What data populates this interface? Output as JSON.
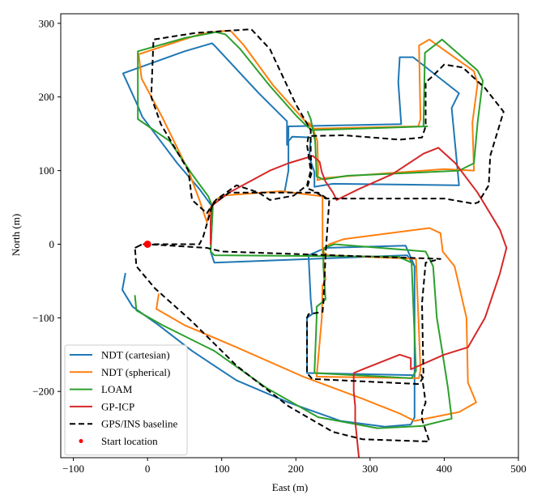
{
  "chart_data": {
    "type": "line",
    "title": "",
    "xlabel": "East (m)",
    "ylabel": "North (m)",
    "xlim": [
      -117,
      500
    ],
    "ylim": [
      -290,
      313
    ],
    "xticks": [
      -100,
      0,
      100,
      200,
      300,
      400,
      500
    ],
    "yticks": [
      -200,
      -100,
      0,
      100,
      200,
      300
    ],
    "grid": false,
    "legend": {
      "position": "lower-left"
    },
    "series": [
      {
        "name": "NDT (cartesian)",
        "color": "#1f77b4",
        "style": "solid",
        "points": [
          [
            -30,
            -40
          ],
          [
            -34,
            -62
          ],
          [
            -20,
            -85
          ],
          [
            15,
            -110
          ],
          [
            60,
            -145
          ],
          [
            120,
            -185
          ],
          [
            190,
            -215
          ],
          [
            260,
            -240
          ],
          [
            320,
            -248
          ],
          [
            355,
            -245
          ],
          [
            360,
            -235
          ],
          [
            360,
            -30
          ],
          [
            348,
            -2
          ],
          [
            240,
            -5
          ],
          [
            217,
            -15
          ],
          [
            220,
            -75
          ],
          [
            222,
            -95
          ],
          [
            215,
            -100
          ],
          [
            215,
            -175
          ],
          [
            360,
            -178
          ],
          [
            360,
            -30
          ],
          [
            350,
            -15
          ],
          [
            90,
            -25
          ],
          [
            85,
            -10
          ],
          [
            88,
            50
          ],
          [
            70,
            75
          ],
          [
            40,
            110
          ],
          [
            -7,
            173
          ],
          [
            -14,
            190
          ],
          [
            -33,
            232
          ],
          [
            50,
            262
          ],
          [
            87,
            273
          ],
          [
            92,
            268
          ],
          [
            150,
            205
          ],
          [
            188,
            167
          ],
          [
            188,
            135
          ],
          [
            190,
            146
          ],
          [
            190,
            160
          ],
          [
            342,
            163
          ],
          [
            338,
            220
          ],
          [
            340,
            254
          ],
          [
            358,
            254
          ],
          [
            420,
            205
          ],
          [
            410,
            185
          ],
          [
            420,
            80
          ],
          [
            250,
            82
          ],
          [
            225,
            78
          ],
          [
            225,
            98
          ],
          [
            218,
            118
          ],
          [
            220,
            145
          ],
          [
            195,
            146
          ],
          [
            190,
            140
          ],
          [
            190,
            100
          ],
          [
            185,
            72
          ]
        ]
      },
      {
        "name": "NDT (spherical)",
        "color": "#ff7f0e",
        "style": "solid",
        "points": [
          [
            15,
            -68
          ],
          [
            12,
            -88
          ],
          [
            50,
            -110
          ],
          [
            120,
            -140
          ],
          [
            210,
            -180
          ],
          [
            290,
            -210
          ],
          [
            340,
            -230
          ],
          [
            360,
            -240
          ],
          [
            420,
            -228
          ],
          [
            443,
            -215
          ],
          [
            432,
            -188
          ],
          [
            430,
            -100
          ],
          [
            414,
            -30
          ],
          [
            398,
            -10
          ],
          [
            395,
            15
          ],
          [
            380,
            22
          ],
          [
            265,
            7
          ],
          [
            245,
            0
          ],
          [
            240,
            -5
          ],
          [
            236,
            -10
          ],
          [
            240,
            -48
          ],
          [
            236,
            -56
          ],
          [
            235,
            -100
          ],
          [
            228,
            -180
          ],
          [
            366,
            -182
          ],
          [
            368,
            -170
          ],
          [
            362,
            -20
          ],
          [
            243,
            -15
          ],
          [
            236,
            -10
          ],
          [
            236,
            65
          ],
          [
            180,
            72
          ],
          [
            100,
            66
          ],
          [
            90,
            58
          ],
          [
            85,
            50
          ],
          [
            80,
            30
          ],
          [
            70,
            60
          ],
          [
            55,
            100
          ],
          [
            20,
            172
          ],
          [
            -8,
            225
          ],
          [
            -12,
            258
          ],
          [
            70,
            285
          ],
          [
            95,
            289
          ],
          [
            112,
            290
          ],
          [
            130,
            270
          ],
          [
            170,
            215
          ],
          [
            210,
            170
          ],
          [
            220,
            160
          ],
          [
            225,
            157
          ],
          [
            365,
            160
          ],
          [
            368,
            170
          ],
          [
            366,
            270
          ],
          [
            380,
            278
          ],
          [
            440,
            235
          ],
          [
            445,
            218
          ],
          [
            438,
            165
          ],
          [
            440,
            100
          ],
          [
            400,
            102
          ],
          [
            265,
            92
          ],
          [
            240,
            90
          ],
          [
            229,
            87
          ],
          [
            230,
            98
          ],
          [
            229,
            140
          ],
          [
            222,
            160
          ],
          [
            217,
            165
          ]
        ]
      },
      {
        "name": "LOAM",
        "color": "#2ca02c",
        "style": "solid",
        "points": [
          [
            -17,
            -70
          ],
          [
            -15,
            -90
          ],
          [
            20,
            -110
          ],
          [
            90,
            -145
          ],
          [
            160,
            -195
          ],
          [
            230,
            -235
          ],
          [
            310,
            -250
          ],
          [
            370,
            -247
          ],
          [
            410,
            -237
          ],
          [
            409,
            -228
          ],
          [
            405,
            -195
          ],
          [
            398,
            -150
          ],
          [
            390,
            -100
          ],
          [
            385,
            -30
          ],
          [
            375,
            -10
          ],
          [
            252,
            0
          ],
          [
            238,
            -5
          ],
          [
            237,
            -10
          ],
          [
            237,
            -30
          ],
          [
            240,
            -75
          ],
          [
            228,
            -85
          ],
          [
            228,
            -100
          ],
          [
            225,
            -175
          ],
          [
            356,
            -182
          ],
          [
            362,
            -172
          ],
          [
            356,
            -25
          ],
          [
            338,
            -17
          ],
          [
            90,
            -15
          ],
          [
            85,
            -10
          ],
          [
            88,
            50
          ],
          [
            82,
            65
          ],
          [
            60,
            95
          ],
          [
            30,
            140
          ],
          [
            -13,
            170
          ],
          [
            -13,
            262
          ],
          [
            50,
            280
          ],
          [
            92,
            288
          ],
          [
            105,
            285
          ],
          [
            125,
            265
          ],
          [
            165,
            215
          ],
          [
            200,
            175
          ],
          [
            215,
            160
          ],
          [
            222,
            155
          ],
          [
            377,
            160
          ],
          [
            372,
            160
          ],
          [
            374,
            260
          ],
          [
            397,
            278
          ],
          [
            445,
            236
          ],
          [
            452,
            222
          ],
          [
            445,
            165
          ],
          [
            440,
            110
          ],
          [
            420,
            100
          ],
          [
            360,
            97
          ],
          [
            270,
            93
          ],
          [
            237,
            88
          ],
          [
            228,
            92
          ],
          [
            226,
            140
          ],
          [
            220,
            170
          ],
          [
            216,
            180
          ]
        ]
      },
      {
        "name": "GP-ICP",
        "color": "#d62728",
        "style": "solid",
        "points": [
          [
            285,
            -290
          ],
          [
            280,
            -240
          ],
          [
            280,
            -220
          ],
          [
            278,
            -200
          ],
          [
            278,
            -175
          ],
          [
            290,
            -170
          ],
          [
            340,
            -150
          ],
          [
            355,
            -155
          ],
          [
            355,
            -170
          ],
          [
            400,
            -150
          ],
          [
            432,
            -140
          ],
          [
            455,
            -100
          ],
          [
            475,
            -40
          ],
          [
            484,
            -5
          ],
          [
            475,
            20
          ],
          [
            445,
            70
          ],
          [
            415,
            110
          ],
          [
            392,
            131
          ],
          [
            372,
            123
          ],
          [
            330,
            95
          ],
          [
            285,
            75
          ],
          [
            255,
            60
          ],
          [
            250,
            70
          ],
          [
            240,
            85
          ],
          [
            235,
            98
          ],
          [
            232,
            112
          ],
          [
            223,
            120
          ],
          [
            190,
            110
          ],
          [
            165,
            100
          ],
          [
            110,
            70
          ],
          [
            90,
            55
          ],
          [
            86,
            50
          ],
          [
            85,
            30
          ],
          [
            85,
            0
          ]
        ]
      },
      {
        "name": "GPS/INS baseline",
        "color": "#000000",
        "style": "dashed",
        "points": [
          [
            -17,
            -5
          ],
          [
            -7,
            0
          ],
          [
            0,
            0
          ],
          [
            80,
            -5
          ],
          [
            100,
            -10
          ],
          [
            395,
            -20
          ],
          [
            375,
            -25
          ],
          [
            370,
            -80
          ],
          [
            372,
            -180
          ],
          [
            366,
            -190
          ],
          [
            222,
            -183
          ],
          [
            215,
            -175
          ],
          [
            215,
            -100
          ],
          [
            217,
            -95
          ],
          [
            236,
            -92
          ],
          [
            237,
            -80
          ],
          [
            240,
            -15
          ],
          [
            245,
            60
          ],
          [
            230,
            70
          ],
          [
            110,
            70
          ],
          [
            90,
            56
          ],
          [
            85,
            50
          ],
          [
            80,
            42
          ],
          [
            60,
            60
          ],
          [
            55,
            100
          ],
          [
            18,
            163
          ],
          [
            5,
            200
          ],
          [
            8,
            278
          ],
          [
            65,
            287
          ],
          [
            140,
            292
          ],
          [
            165,
            265
          ],
          [
            200,
            190
          ],
          [
            220,
            155
          ],
          [
            220,
            126
          ],
          [
            221,
            96
          ],
          [
            215,
            76
          ],
          [
            225,
            72
          ],
          [
            240,
            62
          ],
          [
            340,
            62
          ],
          [
            400,
            62
          ],
          [
            440,
            55
          ],
          [
            446,
            57
          ],
          [
            460,
            80
          ],
          [
            462,
            120
          ],
          [
            480,
            180
          ],
          [
            455,
            212
          ],
          [
            425,
            240
          ],
          [
            400,
            244
          ],
          [
            382,
            226
          ],
          [
            375,
            220
          ],
          [
            375,
            160
          ],
          [
            370,
            145
          ],
          [
            340,
            142
          ],
          [
            265,
            148
          ],
          [
            217,
            147
          ],
          [
            215,
            135
          ],
          [
            220,
            100
          ],
          [
            215,
            80
          ],
          [
            197,
            66
          ],
          [
            165,
            60
          ],
          [
            150,
            70
          ],
          [
            120,
            80
          ],
          [
            92,
            60
          ],
          [
            88,
            55
          ],
          [
            75,
            10
          ],
          [
            70,
            0
          ],
          [
            0,
            0
          ],
          [
            -7,
            0
          ],
          [
            -17,
            -5
          ],
          [
            -15,
            -30
          ],
          [
            10,
            -60
          ],
          [
            60,
            -105
          ],
          [
            120,
            -165
          ],
          [
            190,
            -220
          ],
          [
            250,
            -255
          ],
          [
            290,
            -265
          ],
          [
            380,
            -268
          ],
          [
            370,
            -238
          ],
          [
            370,
            -228
          ],
          [
            375,
            -215
          ],
          [
            370,
            -180
          ],
          [
            368,
            -175
          ]
        ]
      }
    ],
    "start_location": {
      "name": "Start location",
      "color": "#ff0000",
      "point": [
        0,
        0
      ]
    }
  }
}
